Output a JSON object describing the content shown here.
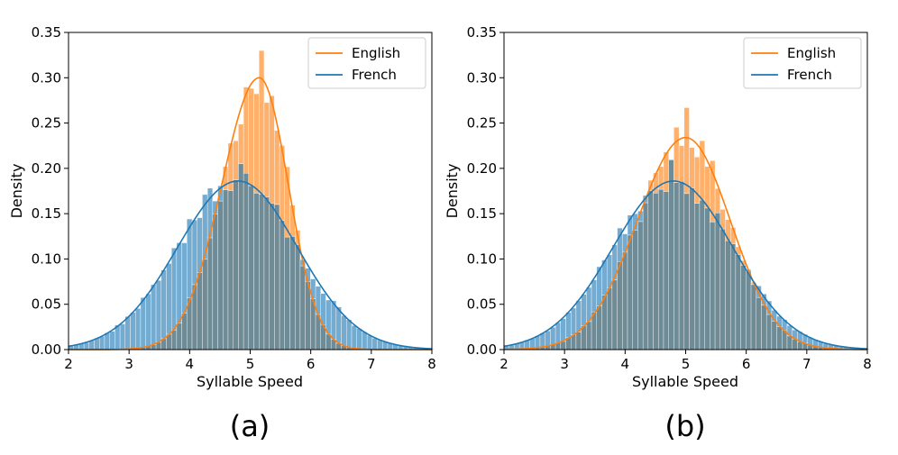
{
  "chart_data": [
    {
      "type": "histogram",
      "caption": "(a)",
      "xlabel": "Syllable Speed",
      "ylabel": "Density",
      "xlim": [
        2,
        8
      ],
      "ylim": [
        0,
        0.35
      ],
      "xticks": [
        "2",
        "3",
        "4",
        "5",
        "6",
        "7",
        "8"
      ],
      "yticks": [
        "0.00",
        "0.05",
        "0.10",
        "0.15",
        "0.20",
        "0.25",
        "0.30",
        "0.35"
      ],
      "legend_position": "top-right",
      "series": [
        {
          "name": "English",
          "color": "#ff7f0e",
          "kde_mean": 5.15,
          "kde_peak": 0.3,
          "left_sd": 0.62,
          "right_sd": 0.48,
          "hist_peak_bin": 5.2,
          "hist_peak_value": 0.33
        },
        {
          "name": "French",
          "color": "#1f77b4",
          "kde_mean": 4.8,
          "kde_peak": 0.186,
          "left_sd": 1.0,
          "right_sd": 0.98,
          "hist_peak_bin": 4.85,
          "hist_peak_value": 0.205
        }
      ]
    },
    {
      "type": "histogram",
      "caption": "(b)",
      "xlabel": "Syllable Speed",
      "ylabel": "Density",
      "xlim": [
        2,
        8
      ],
      "ylim": [
        0,
        0.35
      ],
      "xticks": [
        "2",
        "3",
        "4",
        "5",
        "6",
        "7",
        "8"
      ],
      "yticks": [
        "0.00",
        "0.05",
        "0.10",
        "0.15",
        "0.20",
        "0.25",
        "0.30",
        "0.35"
      ],
      "legend_position": "top-right",
      "series": [
        {
          "name": "English",
          "color": "#ff7f0e",
          "kde_mean": 5.0,
          "kde_peak": 0.234,
          "left_sd": 0.8,
          "right_sd": 0.74,
          "hist_peak_bin": 5.0,
          "hist_peak_value": 0.267
        },
        {
          "name": "French",
          "color": "#1f77b4",
          "kde_mean": 4.8,
          "kde_peak": 0.186,
          "left_sd": 1.0,
          "right_sd": 0.98,
          "hist_peak_bin": 4.8,
          "hist_peak_value": 0.21
        }
      ]
    }
  ]
}
